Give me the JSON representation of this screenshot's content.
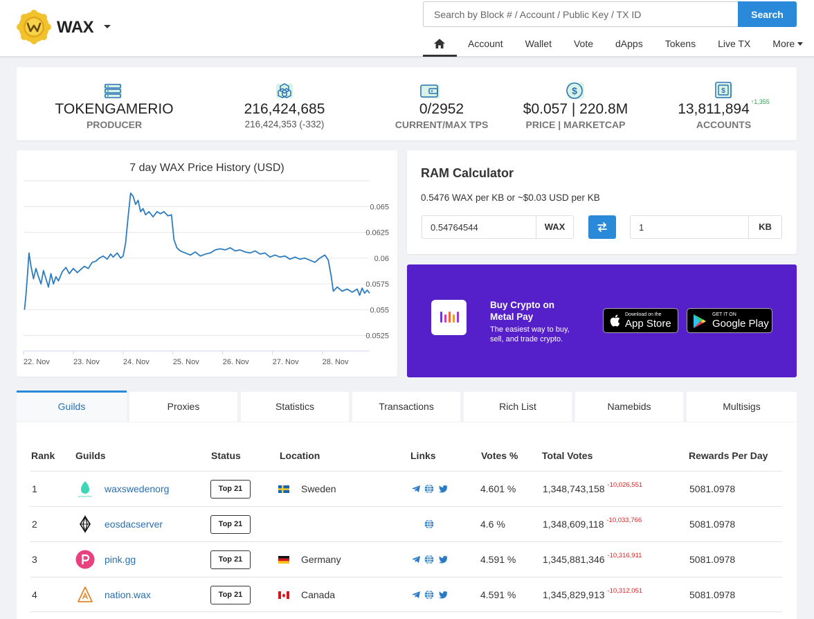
{
  "header": {
    "brand": "WAX",
    "search_placeholder": "Search by Block # / Account / Public Key / TX ID",
    "search_button": "Search",
    "nav": [
      "Account",
      "Wallet",
      "Vote",
      "dApps",
      "Tokens",
      "Live TX",
      "More"
    ]
  },
  "stats": [
    {
      "icon": "server-icon",
      "value": "TOKENGAMERIO",
      "label": "PRODUCER"
    },
    {
      "icon": "cubes-icon",
      "value": "216,424,685",
      "label": "216,424,353 (-332)"
    },
    {
      "icon": "wallet-icon",
      "value": "0/2952",
      "label": "CURRENT/MAX TPS"
    },
    {
      "icon": "dollar-coin-icon",
      "value": "$0.057 | 220.8M",
      "label": "PRICE | MARKETCAP"
    },
    {
      "icon": "safe-icon",
      "value": "13,811,894",
      "delta": "↑1,355",
      "label": "ACCOUNTS"
    }
  ],
  "chart_data": {
    "type": "line",
    "title": "7 day WAX Price History (USD)",
    "x_ticks": [
      "22. Nov",
      "23. Nov",
      "24. Nov",
      "25. Nov",
      "26. Nov",
      "27. Nov",
      "28. Nov"
    ],
    "y_ticks": [
      "0.0525",
      "0.055",
      "0.0575",
      "0.06",
      "0.0625",
      "0.065"
    ],
    "ylim": [
      0.051,
      0.0675
    ],
    "xlim": [
      0,
      6.95
    ],
    "series": [
      {
        "color": "#2b7bbf",
        "points": [
          [
            0.02,
            0.055
          ],
          [
            0.05,
            0.0565
          ],
          [
            0.08,
            0.0585
          ],
          [
            0.11,
            0.0605
          ],
          [
            0.15,
            0.0592
          ],
          [
            0.2,
            0.058
          ],
          [
            0.25,
            0.059
          ],
          [
            0.3,
            0.0582
          ],
          [
            0.35,
            0.0575
          ],
          [
            0.4,
            0.0588
          ],
          [
            0.45,
            0.058
          ],
          [
            0.5,
            0.0572
          ],
          [
            0.55,
            0.0585
          ],
          [
            0.6,
            0.0575
          ],
          [
            0.65,
            0.0582
          ],
          [
            0.7,
            0.0578
          ],
          [
            0.78,
            0.0587
          ],
          [
            0.85,
            0.0591
          ],
          [
            0.92,
            0.0585
          ],
          [
            1.0,
            0.059
          ],
          [
            1.08,
            0.0586
          ],
          [
            1.15,
            0.0589
          ],
          [
            1.22,
            0.0592
          ],
          [
            1.3,
            0.059
          ],
          [
            1.38,
            0.0596
          ],
          [
            1.45,
            0.0597
          ],
          [
            1.52,
            0.06
          ],
          [
            1.6,
            0.0602
          ],
          [
            1.68,
            0.0599
          ],
          [
            1.75,
            0.0604
          ],
          [
            1.8,
            0.0601
          ],
          [
            1.88,
            0.0605
          ],
          [
            1.95,
            0.06
          ],
          [
            2.0,
            0.0602
          ],
          [
            2.05,
            0.0615
          ],
          [
            2.1,
            0.064
          ],
          [
            2.15,
            0.0663
          ],
          [
            2.2,
            0.066
          ],
          [
            2.25,
            0.0652
          ],
          [
            2.3,
            0.0656
          ],
          [
            2.35,
            0.0645
          ],
          [
            2.4,
            0.0648
          ],
          [
            2.45,
            0.0642
          ],
          [
            2.52,
            0.0645
          ],
          [
            2.6,
            0.064
          ],
          [
            2.68,
            0.0645
          ],
          [
            2.75,
            0.0643
          ],
          [
            2.82,
            0.0645
          ],
          [
            2.9,
            0.0641
          ],
          [
            2.97,
            0.0642
          ],
          [
            3.02,
            0.0618
          ],
          [
            3.08,
            0.061
          ],
          [
            3.15,
            0.0607
          ],
          [
            3.25,
            0.0605
          ],
          [
            3.35,
            0.0603
          ],
          [
            3.45,
            0.0606
          ],
          [
            3.55,
            0.0602
          ],
          [
            3.65,
            0.0604
          ],
          [
            3.75,
            0.0605
          ],
          [
            3.85,
            0.0608
          ],
          [
            3.95,
            0.0609
          ],
          [
            4.05,
            0.0608
          ],
          [
            4.15,
            0.061
          ],
          [
            4.25,
            0.0607
          ],
          [
            4.35,
            0.0608
          ],
          [
            4.45,
            0.0606
          ],
          [
            4.55,
            0.0605
          ],
          [
            4.65,
            0.0607
          ],
          [
            4.75,
            0.0604
          ],
          [
            4.85,
            0.0605
          ],
          [
            4.95,
            0.0601
          ],
          [
            5.05,
            0.0603
          ],
          [
            5.15,
            0.0601
          ],
          [
            5.25,
            0.0602
          ],
          [
            5.35,
            0.0599
          ],
          [
            5.45,
            0.0601
          ],
          [
            5.55,
            0.0599
          ],
          [
            5.65,
            0.06
          ],
          [
            5.75,
            0.0598
          ],
          [
            5.85,
            0.0596
          ],
          [
            5.95,
            0.06
          ],
          [
            6.05,
            0.0603
          ],
          [
            6.12,
            0.0598
          ],
          [
            6.18,
            0.0582
          ],
          [
            6.22,
            0.0568
          ],
          [
            6.3,
            0.0572
          ],
          [
            6.4,
            0.0568
          ],
          [
            6.5,
            0.057
          ],
          [
            6.6,
            0.0567
          ],
          [
            6.7,
            0.057
          ],
          [
            6.75,
            0.0564
          ],
          [
            6.8,
            0.0571
          ],
          [
            6.85,
            0.0566
          ],
          [
            6.9,
            0.0569
          ],
          [
            6.95,
            0.0566
          ]
        ]
      }
    ]
  },
  "ram": {
    "title": "RAM Calculator",
    "rate": "0.5476 WAX per KB or ~$0.03 USD per KB",
    "wax_value": "0.54764544",
    "wax_unit": "WAX",
    "kb_value": "1",
    "kb_unit": "KB"
  },
  "promo": {
    "title": "Buy Crypto on Metal Pay",
    "subtitle": "The easiest way to buy, sell, and trade crypto.",
    "appstore_small": "Download on the",
    "appstore_big": "App Store",
    "googleplay_small": "GET IT ON",
    "googleplay_big": "Google Play"
  },
  "tabs": [
    "Guilds",
    "Proxies",
    "Statistics",
    "Transactions",
    "Rich List",
    "Namebids",
    "Multisigs"
  ],
  "table": {
    "headers": [
      "Rank",
      "Guilds",
      "Status",
      "Location",
      "Links",
      "Votes %",
      "Total Votes",
      "Rewards Per Day"
    ],
    "rows": [
      {
        "rank": "1",
        "name": "waxswedenorg",
        "status": "Top 21",
        "location": "Sweden",
        "votes_pct": "4.601 %",
        "total": "1,348,743,158",
        "delta": "-10,026,551",
        "rewards": "5081.0978"
      },
      {
        "rank": "2",
        "name": "eosdacserver",
        "status": "Top 21",
        "location": "",
        "votes_pct": "4.6 %",
        "total": "1,348,609,118",
        "delta": "-10,033,766",
        "rewards": "5081.0978"
      },
      {
        "rank": "3",
        "name": "pink.gg",
        "status": "Top 21",
        "location": "Germany",
        "votes_pct": "4.591 %",
        "total": "1,345,881,346",
        "delta": "-10,316,911",
        "rewards": "5081.0978"
      },
      {
        "rank": "4",
        "name": "nation.wax",
        "status": "Top 21",
        "location": "Canada",
        "votes_pct": "4.591 %",
        "total": "1,345,829,913",
        "delta": "-10,312,051",
        "rewards": "5081.0978"
      }
    ]
  }
}
